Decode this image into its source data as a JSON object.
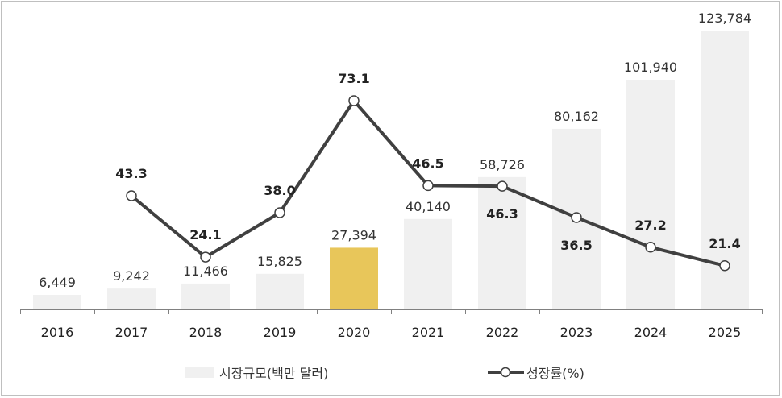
{
  "chart_data": {
    "type": "bar+line",
    "categories": [
      "2016",
      "2017",
      "2018",
      "2019",
      "2020",
      "2021",
      "2022",
      "2023",
      "2024",
      "2025"
    ],
    "series": [
      {
        "name": "시장규모(백만 달러)",
        "type": "bar",
        "axis": "primary",
        "values": [
          6449,
          9242,
          11466,
          15825,
          27394,
          40140,
          58726,
          80162,
          101940,
          123784
        ],
        "labels": [
          "6,449",
          "9,242",
          "11,466",
          "15,825",
          "27,394",
          "40,140",
          "58,726",
          "80,162",
          "101,940",
          "123,784"
        ],
        "color": "#f0f0f0",
        "highlight_color": "#e8c65a",
        "highlight_category": "2020"
      },
      {
        "name": "성장률(%)",
        "type": "line",
        "axis": "secondary",
        "values": [
          null,
          43.3,
          24.1,
          38.0,
          73.1,
          46.5,
          46.3,
          36.5,
          27.2,
          21.4
        ],
        "labels": [
          "",
          "43.3",
          "24.1",
          "38.0",
          "73.1",
          "46.5",
          "46.3",
          "36.5",
          "27.2",
          "21.4"
        ],
        "color": "#404040"
      }
    ],
    "primary_ylim": [
      0,
      123784
    ],
    "grid": false,
    "legend_placement": "bottom"
  }
}
